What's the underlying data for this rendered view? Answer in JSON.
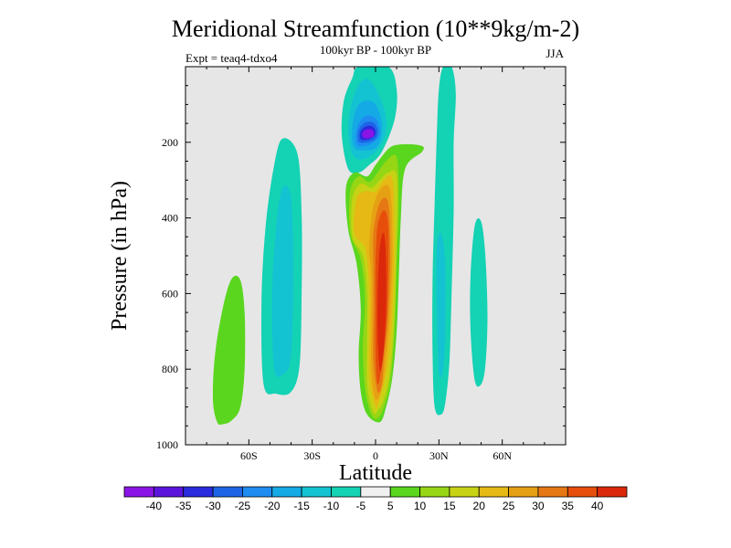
{
  "chart_data": {
    "type": "contour",
    "title": "Meridional Streamfunction (10**9kg/m-2)",
    "subtitle": "100kyr BP - 100kyr BP",
    "experiment_label": "Expt = teaq4-tdxo4",
    "season": "JJA",
    "xlabel": "Latitude",
    "ylabel": "Pressure (in hPa)",
    "xlim": [
      -90,
      90
    ],
    "ylim": [
      0,
      1000
    ],
    "x_ticks": [
      {
        "value": -60,
        "label": "60S"
      },
      {
        "value": -30,
        "label": "30S"
      },
      {
        "value": 0,
        "label": "0"
      },
      {
        "value": 30,
        "label": "30N"
      },
      {
        "value": 60,
        "label": "60N"
      }
    ],
    "y_ticks": [
      {
        "value": 200,
        "label": "200"
      },
      {
        "value": 400,
        "label": "400"
      },
      {
        "value": 600,
        "label": "600"
      },
      {
        "value": 800,
        "label": "800"
      },
      {
        "value": 1000,
        "label": "1000"
      }
    ],
    "background_color": "#e6e6e6",
    "colorbar": {
      "levels": [
        -40,
        -35,
        -30,
        -25,
        -20,
        -15,
        -10,
        -5,
        5,
        10,
        15,
        20,
        25,
        30,
        35,
        40
      ],
      "labels": [
        "-40",
        "-35",
        "-30",
        "-25",
        "-20",
        "-15",
        "-10",
        "-5",
        "5",
        "10",
        "15",
        "20",
        "25",
        "30",
        "35",
        "40"
      ],
      "colors": [
        "#8a14e6",
        "#5a14dc",
        "#2a2ade",
        "#1e64e6",
        "#1e8cf0",
        "#14aae6",
        "#14c3d2",
        "#14d2b4",
        "#f0f0f0",
        "#5ad61e",
        "#96d614",
        "#c8d214",
        "#e6b914",
        "#e6a014",
        "#e67814",
        "#e64e0a",
        "#dc280a"
      ]
    },
    "contour_regions": [
      {
        "name": "sh-positive-cell",
        "color": "#5ad61e",
        "points": [
          [
            -75,
            940
          ],
          [
            -77,
            880
          ],
          [
            -76,
            760
          ],
          [
            -72,
            630
          ],
          [
            -68,
            560
          ],
          [
            -64,
            565
          ],
          [
            -62,
            650
          ],
          [
            -62,
            800
          ],
          [
            -64,
            900
          ],
          [
            -68,
            935
          ],
          [
            -72,
            945
          ]
        ]
      },
      {
        "name": "sh-negative-cell",
        "color": "#14d2b4",
        "points": [
          [
            -53,
            840
          ],
          [
            -54,
            620
          ],
          [
            -52,
            420
          ],
          [
            -48,
            260
          ],
          [
            -44,
            190
          ],
          [
            -37,
            230
          ],
          [
            -35,
            390
          ],
          [
            -35,
            600
          ],
          [
            -36,
            790
          ],
          [
            -40,
            860
          ],
          [
            -47,
            865
          ]
        ]
      },
      {
        "name": "sh-negative-core",
        "color": "#14c3d2",
        "points": [
          [
            -48,
            800
          ],
          [
            -49,
            600
          ],
          [
            -47,
            420
          ],
          [
            -44,
            320
          ],
          [
            -40,
            350
          ],
          [
            -39,
            550
          ],
          [
            -40,
            760
          ],
          [
            -43,
            810
          ]
        ]
      },
      {
        "name": "upper-negative-plume",
        "color": "#14d2b4",
        "points": [
          [
            -13,
            270
          ],
          [
            -16,
            180
          ],
          [
            -15,
            90
          ],
          [
            -11,
            30
          ],
          [
            -8,
            0
          ],
          [
            6,
            0
          ],
          [
            10,
            60
          ],
          [
            9,
            140
          ],
          [
            3,
            225
          ],
          [
            -3,
            260
          ],
          [
            -8,
            280
          ]
        ]
      },
      {
        "name": "upper-negative-2",
        "color": "#14c3d2",
        "points": [
          [
            -11,
            230
          ],
          [
            -13,
            160
          ],
          [
            -11,
            90
          ],
          [
            -7,
            40
          ],
          [
            -2,
            40
          ],
          [
            4,
            110
          ],
          [
            5,
            170
          ],
          [
            1,
            220
          ],
          [
            -6,
            245
          ]
        ]
      },
      {
        "name": "upper-negative-3",
        "color": "#14aae6",
        "points": [
          [
            -10,
            215
          ],
          [
            -11,
            160
          ],
          [
            -9,
            110
          ],
          [
            -5,
            90
          ],
          [
            0,
            100
          ],
          [
            3,
            150
          ],
          [
            2,
            200
          ],
          [
            -2,
            220
          ]
        ]
      },
      {
        "name": "upper-negative-4",
        "color": "#1e8cf0",
        "points": [
          [
            -9,
            205
          ],
          [
            -9,
            165
          ],
          [
            -6,
            135
          ],
          [
            -2,
            130
          ],
          [
            1,
            145
          ],
          [
            2,
            180
          ],
          [
            -1,
            200
          ],
          [
            -5,
            210
          ]
        ]
      },
      {
        "name": "upper-negative-5",
        "color": "#1e64e6",
        "points": [
          [
            -8,
            198
          ],
          [
            -8,
            168
          ],
          [
            -5,
            148
          ],
          [
            -1,
            148
          ],
          [
            1,
            168
          ],
          [
            0,
            190
          ],
          [
            -4,
            200
          ]
        ]
      },
      {
        "name": "upper-negative-6",
        "color": "#2a2ade",
        "points": [
          [
            -7,
            192
          ],
          [
            -7,
            170
          ],
          [
            -4,
            157
          ],
          [
            -1,
            160
          ],
          [
            0,
            178
          ],
          [
            -3,
            192
          ]
        ]
      },
      {
        "name": "upper-negative-core",
        "color": "#8a14e6",
        "points": [
          [
            -6,
            186
          ],
          [
            -6,
            172
          ],
          [
            -3,
            165
          ],
          [
            -1,
            171
          ],
          [
            -1,
            184
          ],
          [
            -4,
            190
          ]
        ]
      },
      {
        "name": "tropical-positive-band",
        "color": "#5ad61e",
        "points": [
          [
            -4,
            920
          ],
          [
            -7,
            860
          ],
          [
            -8,
            760
          ],
          [
            -7,
            640
          ],
          [
            -9,
            520
          ],
          [
            -13,
            430
          ],
          [
            -14,
            320
          ],
          [
            -10,
            280
          ],
          [
            -4,
            290
          ],
          [
            0,
            260
          ],
          [
            4,
            230
          ],
          [
            8,
            210
          ],
          [
            15,
            205
          ],
          [
            22,
            210
          ],
          [
            22,
            225
          ],
          [
            14,
            270
          ],
          [
            12,
            400
          ],
          [
            11,
            560
          ],
          [
            10,
            700
          ],
          [
            8,
            820
          ],
          [
            5,
            900
          ],
          [
            2,
            940
          ]
        ]
      },
      {
        "name": "tropical-positive-2",
        "color": "#96d614",
        "points": [
          [
            -2,
            920
          ],
          [
            -5,
            850
          ],
          [
            -6,
            740
          ],
          [
            -5,
            620
          ],
          [
            -7,
            510
          ],
          [
            -12,
            440
          ],
          [
            -12,
            330
          ],
          [
            -8,
            290
          ],
          [
            -3,
            305
          ],
          [
            1,
            280
          ],
          [
            5,
            250
          ],
          [
            10,
            240
          ],
          [
            11,
            360
          ],
          [
            10,
            520
          ],
          [
            9,
            700
          ],
          [
            7,
            830
          ],
          [
            4,
            900
          ],
          [
            1,
            930
          ]
        ]
      },
      {
        "name": "tropical-positive-3",
        "color": "#c8d214",
        "points": [
          [
            -1,
            915
          ],
          [
            -4,
            840
          ],
          [
            -4,
            720
          ],
          [
            -4,
            600
          ],
          [
            -6,
            500
          ],
          [
            -11,
            450
          ],
          [
            -11,
            350
          ],
          [
            -7,
            310
          ],
          [
            -2,
            320
          ],
          [
            2,
            300
          ],
          [
            6,
            280
          ],
          [
            10,
            290
          ],
          [
            10,
            450
          ],
          [
            9,
            650
          ],
          [
            7,
            800
          ],
          [
            4,
            880
          ],
          [
            1,
            910
          ]
        ]
      },
      {
        "name": "tropical-positive-4",
        "color": "#e6b914",
        "points": [
          [
            0,
            900
          ],
          [
            -3,
            820
          ],
          [
            -3,
            700
          ],
          [
            -3,
            580
          ],
          [
            -5,
            480
          ],
          [
            -10,
            440
          ],
          [
            -9,
            350
          ],
          [
            -5,
            330
          ],
          [
            0,
            330
          ],
          [
            4,
            300
          ],
          [
            8,
            300
          ],
          [
            9,
            460
          ],
          [
            8,
            650
          ],
          [
            6,
            780
          ],
          [
            3,
            860
          ],
          [
            1,
            895
          ]
        ]
      },
      {
        "name": "tropical-positive-5",
        "color": "#e6a014",
        "points": [
          [
            0,
            880
          ],
          [
            -2,
            800
          ],
          [
            -2,
            680
          ],
          [
            -2,
            560
          ],
          [
            -3,
            470
          ],
          [
            -1,
            370
          ],
          [
            3,
            320
          ],
          [
            7,
            330
          ],
          [
            8,
            480
          ],
          [
            7,
            650
          ],
          [
            5,
            770
          ],
          [
            3,
            850
          ]
        ]
      },
      {
        "name": "tropical-positive-6",
        "color": "#e67814",
        "points": [
          [
            1,
            860
          ],
          [
            -1,
            780
          ],
          [
            -1,
            660
          ],
          [
            -1,
            540
          ],
          [
            -1,
            440
          ],
          [
            2,
            360
          ],
          [
            6,
            360
          ],
          [
            7,
            500
          ],
          [
            6,
            660
          ],
          [
            4,
            770
          ],
          [
            3,
            840
          ]
        ]
      },
      {
        "name": "tropical-positive-core",
        "color": "#e64e0a",
        "points": [
          [
            1,
            840
          ],
          [
            0,
            760
          ],
          [
            0,
            640
          ],
          [
            0,
            520
          ],
          [
            1,
            420
          ],
          [
            4,
            380
          ],
          [
            6,
            420
          ],
          [
            6,
            560
          ],
          [
            5,
            690
          ],
          [
            3,
            790
          ]
        ]
      },
      {
        "name": "tropical-positive-peak",
        "color": "#dc280a",
        "points": [
          [
            2,
            800
          ],
          [
            1,
            720
          ],
          [
            1,
            600
          ],
          [
            2,
            480
          ],
          [
            4,
            440
          ],
          [
            5,
            520
          ],
          [
            5,
            640
          ],
          [
            4,
            740
          ],
          [
            3,
            790
          ]
        ]
      },
      {
        "name": "nh-negative-cell",
        "color": "#14d2b4",
        "points": [
          [
            28,
            900
          ],
          [
            27,
            760
          ],
          [
            27,
            560
          ],
          [
            28,
            360
          ],
          [
            29,
            180
          ],
          [
            30,
            60
          ],
          [
            32,
            0
          ],
          [
            36,
            0
          ],
          [
            38,
            70
          ],
          [
            37,
            200
          ],
          [
            37,
            380
          ],
          [
            36,
            600
          ],
          [
            35,
            780
          ],
          [
            33,
            890
          ],
          [
            31,
            920
          ]
        ]
      },
      {
        "name": "nh-negative-core",
        "color": "#14c3d2",
        "points": [
          [
            30,
            810
          ],
          [
            29,
            640
          ],
          [
            29,
            480
          ],
          [
            31,
            440
          ],
          [
            33,
            520
          ],
          [
            33,
            700
          ],
          [
            32,
            800
          ]
        ]
      },
      {
        "name": "nh-outer-negative",
        "color": "#14d2b4",
        "points": [
          [
            47,
            830
          ],
          [
            45,
            700
          ],
          [
            45,
            550
          ],
          [
            47,
            420
          ],
          [
            50,
            410
          ],
          [
            52,
            500
          ],
          [
            53,
            660
          ],
          [
            52,
            790
          ],
          [
            50,
            840
          ]
        ]
      }
    ]
  }
}
